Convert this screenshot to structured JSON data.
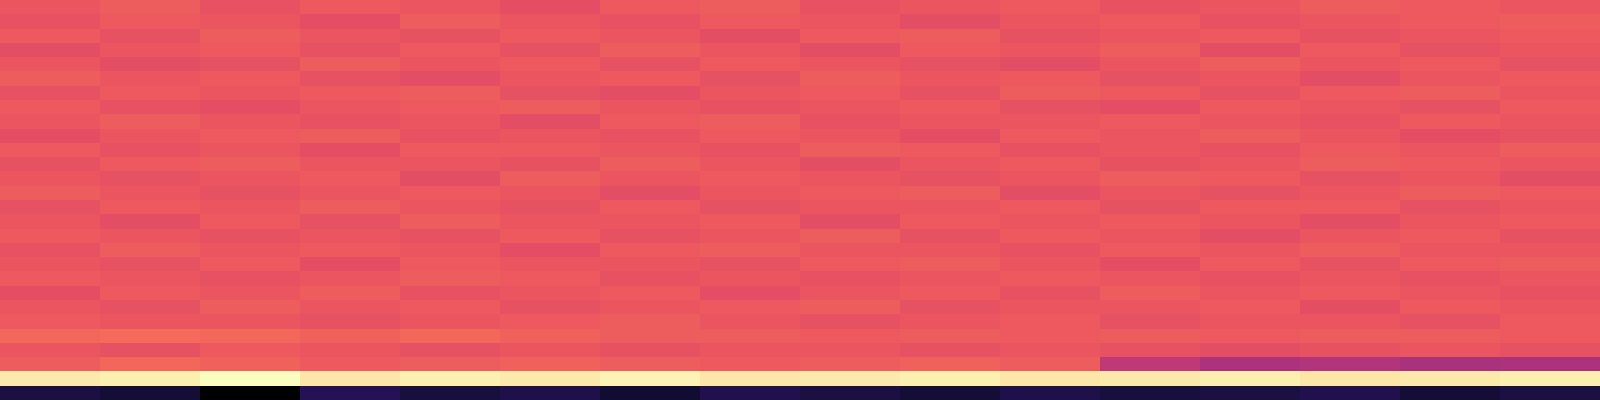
{
  "chart_data": {
    "type": "heatmap",
    "tick_labels": false,
    "cells": [
      [
        0.64,
        0.66,
        0.63,
        0.65,
        0.64,
        0.62,
        0.65,
        0.66,
        0.63,
        0.64,
        0.65,
        0.63,
        0.64,
        0.66,
        0.65,
        0.64
      ],
      [
        0.63,
        0.65,
        0.64,
        0.62,
        0.66,
        0.64,
        0.63,
        0.65,
        0.64,
        0.62,
        0.64,
        0.65,
        0.63,
        0.64,
        0.65,
        0.66
      ],
      [
        0.65,
        0.63,
        0.66,
        0.64,
        0.63,
        0.65,
        0.64,
        0.62,
        0.65,
        0.66,
        0.63,
        0.64,
        0.65,
        0.63,
        0.64,
        0.65
      ],
      [
        0.62,
        0.64,
        0.65,
        0.63,
        0.65,
        0.63,
        0.66,
        0.64,
        0.62,
        0.65,
        0.64,
        0.66,
        0.62,
        0.65,
        0.63,
        0.64
      ],
      [
        0.64,
        0.62,
        0.63,
        0.66,
        0.64,
        0.65,
        0.63,
        0.65,
        0.64,
        0.63,
        0.62,
        0.64,
        0.66,
        0.64,
        0.65,
        0.63
      ],
      [
        0.66,
        0.64,
        0.65,
        0.63,
        0.62,
        0.64,
        0.65,
        0.63,
        0.66,
        0.64,
        0.65,
        0.63,
        0.64,
        0.62,
        0.64,
        0.65
      ],
      [
        0.63,
        0.65,
        0.64,
        0.65,
        0.66,
        0.63,
        0.62,
        0.64,
        0.65,
        0.63,
        0.66,
        0.65,
        0.63,
        0.65,
        0.66,
        0.64
      ],
      [
        0.65,
        0.63,
        0.62,
        0.64,
        0.65,
        0.66,
        0.64,
        0.63,
        0.64,
        0.65,
        0.63,
        0.62,
        0.65,
        0.64,
        0.63,
        0.65
      ],
      [
        0.64,
        0.66,
        0.64,
        0.63,
        0.64,
        0.62,
        0.65,
        0.66,
        0.63,
        0.64,
        0.64,
        0.65,
        0.64,
        0.63,
        0.65,
        0.64
      ],
      [
        0.62,
        0.64,
        0.65,
        0.66,
        0.63,
        0.64,
        0.63,
        0.65,
        0.64,
        0.62,
        0.65,
        0.64,
        0.66,
        0.64,
        0.62,
        0.63
      ],
      [
        0.65,
        0.63,
        0.64,
        0.62,
        0.65,
        0.65,
        0.64,
        0.63,
        0.66,
        0.65,
        0.63,
        0.64,
        0.63,
        0.65,
        0.64,
        0.66
      ],
      [
        0.63,
        0.65,
        0.66,
        0.64,
        0.64,
        0.63,
        0.66,
        0.64,
        0.62,
        0.64,
        0.65,
        0.63,
        0.64,
        0.66,
        0.65,
        0.64
      ],
      [
        0.64,
        0.63,
        0.64,
        0.65,
        0.62,
        0.66,
        0.64,
        0.65,
        0.64,
        0.63,
        0.64,
        0.66,
        0.65,
        0.63,
        0.64,
        0.62
      ],
      [
        0.66,
        0.64,
        0.63,
        0.64,
        0.65,
        0.64,
        0.62,
        0.64,
        0.65,
        0.66,
        0.62,
        0.64,
        0.63,
        0.64,
        0.66,
        0.65
      ],
      [
        0.63,
        0.65,
        0.64,
        0.66,
        0.64,
        0.63,
        0.65,
        0.63,
        0.64,
        0.64,
        0.65,
        0.63,
        0.65,
        0.65,
        0.63,
        0.64
      ],
      [
        0.64,
        0.62,
        0.65,
        0.63,
        0.66,
        0.64,
        0.64,
        0.65,
        0.62,
        0.65,
        0.64,
        0.65,
        0.64,
        0.62,
        0.64,
        0.65
      ],
      [
        0.65,
        0.64,
        0.63,
        0.64,
        0.63,
        0.65,
        0.63,
        0.64,
        0.66,
        0.63,
        0.65,
        0.64,
        0.62,
        0.64,
        0.65,
        0.63
      ],
      [
        0.63,
        0.66,
        0.64,
        0.65,
        0.64,
        0.62,
        0.65,
        0.66,
        0.64,
        0.64,
        0.63,
        0.65,
        0.64,
        0.66,
        0.64,
        0.64
      ],
      [
        0.64,
        0.63,
        0.65,
        0.62,
        0.65,
        0.64,
        0.64,
        0.63,
        0.65,
        0.66,
        0.64,
        0.62,
        0.65,
        0.63,
        0.65,
        0.66
      ],
      [
        0.65,
        0.64,
        0.63,
        0.64,
        0.66,
        0.65,
        0.63,
        0.64,
        0.63,
        0.64,
        0.65,
        0.64,
        0.63,
        0.64,
        0.63,
        0.64
      ],
      [
        0.62,
        0.65,
        0.64,
        0.66,
        0.63,
        0.64,
        0.65,
        0.62,
        0.64,
        0.65,
        0.63,
        0.66,
        0.64,
        0.65,
        0.64,
        0.63
      ],
      [
        0.64,
        0.63,
        0.66,
        0.64,
        0.65,
        0.63,
        0.64,
        0.65,
        0.66,
        0.63,
        0.64,
        0.64,
        0.65,
        0.62,
        0.65,
        0.64
      ],
      [
        0.65,
        0.64,
        0.64,
        0.63,
        0.64,
        0.65,
        0.66,
        0.64,
        0.63,
        0.64,
        0.65,
        0.63,
        0.64,
        0.64,
        0.63,
        0.65
      ],
      [
        0.68,
        0.69,
        0.68,
        0.67,
        0.68,
        0.67,
        0.66,
        0.66,
        0.65,
        0.66,
        0.65,
        0.66,
        0.65,
        0.66,
        0.66,
        0.65
      ],
      [
        0.64,
        0.63,
        0.65,
        0.64,
        0.63,
        0.64,
        0.63,
        0.64,
        0.64,
        0.63,
        0.64,
        0.63,
        0.62,
        0.63,
        0.64,
        0.63
      ],
      [
        0.66,
        0.68,
        0.67,
        0.65,
        0.66,
        0.67,
        0.66,
        0.65,
        0.66,
        0.67,
        0.66,
        0.52,
        0.48,
        0.49,
        0.47,
        0.48
      ],
      [
        0.96,
        0.97,
        1.0,
        0.95,
        0.97,
        0.96,
        0.98,
        0.95,
        0.96,
        0.97,
        0.95,
        0.96,
        0.97,
        0.95,
        0.96,
        0.97
      ],
      [
        0.12,
        0.1,
        0.0,
        0.15,
        0.11,
        0.13,
        0.09,
        0.14,
        0.12,
        0.1,
        0.13,
        0.11,
        0.12,
        0.14,
        0.1,
        0.12
      ]
    ]
  }
}
